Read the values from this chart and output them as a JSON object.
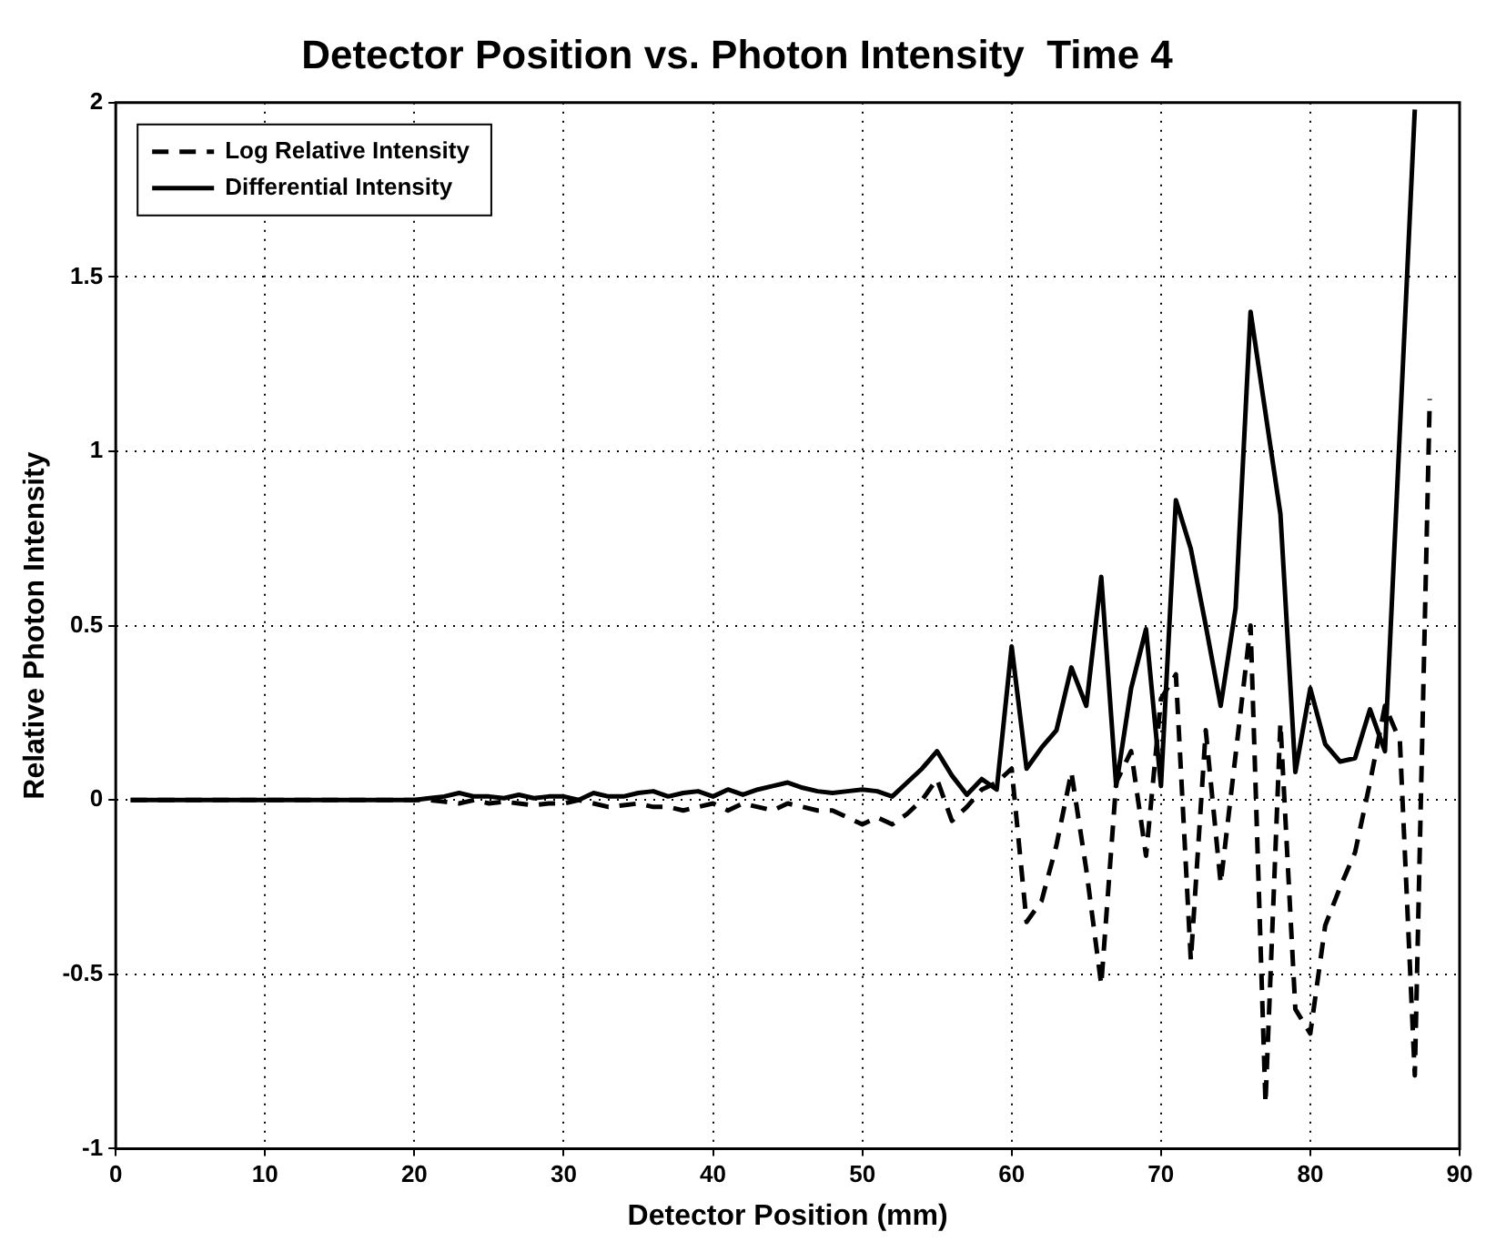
{
  "chart_data": {
    "type": "line",
    "title": "Detector Position vs. Photon Intensity  Time 4",
    "xlabel": "Detector Position (mm)",
    "ylabel": "Relative Photon Intensity",
    "xlim": [
      0,
      90
    ],
    "xticks": [
      0,
      10,
      20,
      30,
      40,
      50,
      60,
      70,
      80,
      90
    ],
    "ylim": [
      -1,
      2
    ],
    "yticks": [
      -1,
      -0.5,
      0,
      0.5,
      1,
      1.5,
      2
    ],
    "grid": true,
    "legend": "top left",
    "series": [
      {
        "name": "Log Relative Intensity",
        "color": "#000000",
        "line_style": "dashed",
        "x": [
          1,
          2,
          3,
          4,
          5,
          6,
          7,
          8,
          9,
          10,
          11,
          12,
          13,
          14,
          15,
          16,
          17,
          18,
          19,
          20,
          21,
          22,
          23,
          24,
          25,
          26,
          27,
          28,
          29,
          30,
          31,
          32,
          33,
          34,
          35,
          36,
          37,
          38,
          39,
          40,
          41,
          42,
          43,
          44,
          45,
          46,
          47,
          48,
          49,
          50,
          51,
          52,
          53,
          54,
          55,
          56,
          57,
          58,
          59,
          60,
          61,
          62,
          63,
          64,
          65,
          66,
          67,
          68,
          69,
          70,
          71,
          72,
          73,
          74,
          75,
          76,
          77,
          78,
          79,
          80,
          81,
          82,
          83,
          84,
          85,
          86,
          87,
          88
        ],
        "values": [
          0,
          0,
          0,
          0,
          0,
          0,
          0,
          0,
          0,
          0,
          0,
          0,
          0,
          0,
          0,
          0,
          0,
          0,
          0,
          0,
          0,
          -0.005,
          -0.01,
          0,
          -0.01,
          -0.005,
          -0.01,
          -0.015,
          -0.01,
          -0.01,
          0,
          -0.01,
          -0.02,
          -0.015,
          -0.01,
          -0.02,
          -0.02,
          -0.03,
          -0.02,
          -0.01,
          -0.03,
          -0.01,
          -0.02,
          -0.03,
          -0.01,
          -0.02,
          -0.03,
          -0.03,
          -0.05,
          -0.07,
          -0.05,
          -0.07,
          -0.04,
          0,
          0.06,
          -0.06,
          -0.02,
          0.03,
          0.05,
          0.09,
          -0.35,
          -0.29,
          -0.13,
          0.08,
          -0.2,
          -0.53,
          0.05,
          0.14,
          -0.16,
          0.29,
          0.36,
          -0.46,
          0.2,
          -0.24,
          0.13,
          0.5,
          -0.87,
          0.22,
          -0.6,
          -0.67,
          -0.36,
          -0.25,
          -0.15,
          0.05,
          0.27,
          0.17,
          -0.79,
          1.15
        ]
      },
      {
        "name": "Differential Intensity",
        "color": "#000000",
        "line_style": "solid",
        "x": [
          1,
          2,
          3,
          4,
          5,
          6,
          7,
          8,
          9,
          10,
          11,
          12,
          13,
          14,
          15,
          16,
          17,
          18,
          19,
          20,
          21,
          22,
          23,
          24,
          25,
          26,
          27,
          28,
          29,
          30,
          31,
          32,
          33,
          34,
          35,
          36,
          37,
          38,
          39,
          40,
          41,
          42,
          43,
          44,
          45,
          46,
          47,
          48,
          49,
          50,
          51,
          52,
          53,
          54,
          55,
          56,
          57,
          58,
          59,
          60,
          61,
          62,
          63,
          64,
          65,
          66,
          67,
          68,
          69,
          70,
          71,
          72,
          73,
          74,
          75,
          76,
          77,
          78,
          79,
          80,
          81,
          82,
          83,
          84,
          85,
          86,
          87
        ],
        "values": [
          0,
          0,
          0,
          0,
          0,
          0,
          0,
          0,
          0,
          0,
          0,
          0,
          0,
          0,
          0,
          0,
          0,
          0,
          0,
          0,
          0.005,
          0.01,
          0.02,
          0.01,
          0.01,
          0.005,
          0.015,
          0.005,
          0.01,
          0.01,
          0,
          0.02,
          0.01,
          0.01,
          0.02,
          0.025,
          0.01,
          0.02,
          0.025,
          0.01,
          0.03,
          0.015,
          0.03,
          0.04,
          0.05,
          0.035,
          0.025,
          0.02,
          0.025,
          0.03,
          0.025,
          0.01,
          0.05,
          0.09,
          0.14,
          0.07,
          0.015,
          0.06,
          0.03,
          0.44,
          0.09,
          0.15,
          0.2,
          0.38,
          0.27,
          0.64,
          0.04,
          0.32,
          0.49,
          0.04,
          0.86,
          0.72,
          0.5,
          0.27,
          0.55,
          1.4,
          1.11,
          0.82,
          0.08,
          0.32,
          0.16,
          0.11,
          0.12,
          0.26,
          0.14,
          1.06,
          1.98
        ]
      }
    ]
  }
}
